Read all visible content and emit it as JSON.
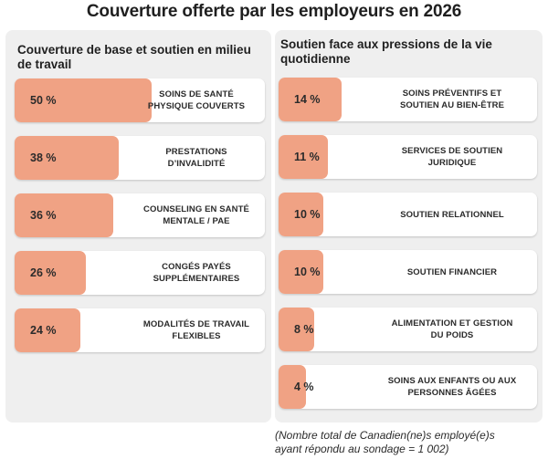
{
  "title": "Couverture offerte par les employeurs en 2026",
  "footnote_line1": "(Nombre total de Canadien(ne)s employé(e)s",
  "footnote_line2": "ayant répondu au sondage = 1 002)",
  "colors": {
    "fill": "#f0a284",
    "panel": "#efefef",
    "card": "#ffffff"
  },
  "chart_data": [
    {
      "type": "bar",
      "title": "Couverture de base et soutien en milieu de travail",
      "unit": "%",
      "categories": [
        "SOINS DE SANTÉ PHYSIQUE COUVERTS",
        "PRESTATIONS D’INVALIDITÉ",
        "COUNSELING EN SANTÉ MENTALE / PAE",
        "CONGÉS PAYÉS SUPPLÉMENTAIRES",
        "MODALITÉS DE TRAVAIL FLEXIBLES"
      ],
      "values": [
        50,
        38,
        36,
        26,
        24
      ],
      "labels": [
        "50 %",
        "38 %",
        "36 %",
        "26 %",
        "24 %"
      ]
    },
    {
      "type": "bar",
      "title": "Soutien face aux pressions de la vie quotidienne",
      "unit": "%",
      "categories": [
        "SOINS PRÉVENTIFS ET SOUTIEN AU BIEN-ÊTRE",
        "SERVICES DE SOUTIEN JURIDIQUE",
        "SOUTIEN RELATIONNEL",
        "SOUTIEN FINANCIER",
        "ALIMENTATION ET GESTION DU POIDS",
        "SOINS AUX ENFANTS OU AUX PERSONNES ÂGÉES"
      ],
      "values": [
        14,
        11,
        10,
        10,
        8,
        4
      ],
      "labels": [
        "14 %",
        "11 %",
        "10 %",
        "10 %",
        "8 %",
        "4 %"
      ]
    }
  ]
}
